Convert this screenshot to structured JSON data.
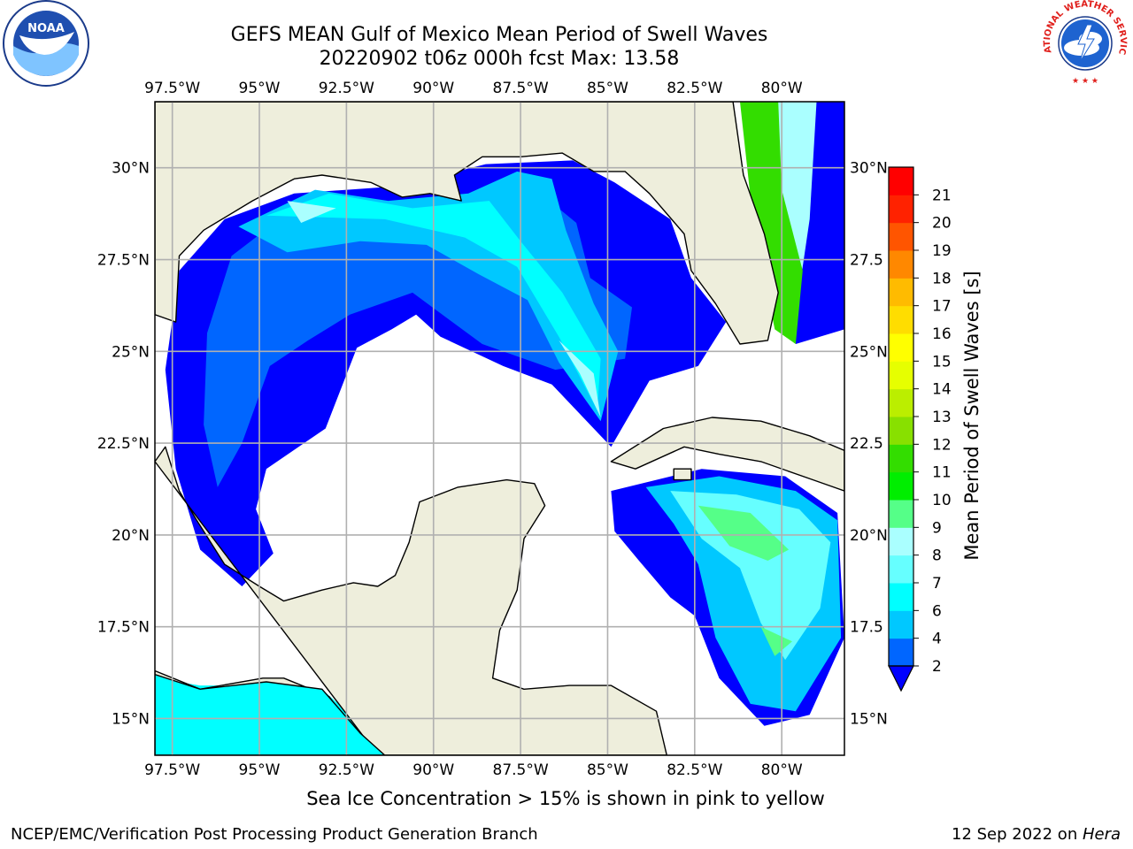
{
  "title": {
    "line1": "GEFS MEAN Gulf of Mexico Mean Period of Swell Waves",
    "line2": "20220902 t06z 000h fcst   Max: 13.58"
  },
  "logos": {
    "left": {
      "icon": "noaa-logo",
      "text": "NOAA"
    },
    "right": {
      "icon": "nws-logo",
      "text": "NATIONAL WEATHER SERVICE"
    }
  },
  "map": {
    "region": "Gulf of Mexico",
    "lon_ticks": [
      "97.5°W",
      "95°W",
      "92.5°W",
      "90°W",
      "87.5°W",
      "85°W",
      "82.5°W",
      "80°W"
    ],
    "lon_values": [
      -97.5,
      -95,
      -92.5,
      -90,
      -87.5,
      -85,
      -82.5,
      -80
    ],
    "lat_ticks_left": [
      "30°N",
      "27.5°N",
      "25°N",
      "22.5°N",
      "20°N",
      "17.5°N",
      "15°N"
    ],
    "lat_ticks_right": [
      "30°N",
      "27.5",
      "25°N",
      "22.5",
      "20°N",
      "17.5",
      "15°N"
    ],
    "lat_values": [
      30,
      27.5,
      25,
      22.5,
      20,
      17.5,
      15
    ],
    "extent": {
      "lon": [
        -98,
        -78.2
      ],
      "lat": [
        14,
        31.8
      ]
    },
    "grid": true,
    "land_color": "#eeeedc",
    "coast_color": "#000000"
  },
  "colorbar": {
    "label": "Mean Period of Swell Waves [s]",
    "ticks": [
      "2",
      "4",
      "6",
      "7",
      "8",
      "9",
      "10",
      "11",
      "12",
      "13",
      "14",
      "15",
      "16",
      "17",
      "18",
      "19",
      "20",
      "21"
    ],
    "colors": [
      "#0066ff",
      "#00c8ff",
      "#00ffff",
      "#66ffff",
      "#aaffff",
      "#55ff88",
      "#00ee00",
      "#33dd00",
      "#88e000",
      "#bbee00",
      "#e6ff00",
      "#ffff00",
      "#ffdd00",
      "#ffbb00",
      "#ff8800",
      "#ff5500",
      "#ff2200",
      "#ff0000"
    ],
    "extend_color": "#0000ff",
    "orientation": "vertical"
  },
  "caption": "Sea Ice Concentration > 15% is shown in pink to yellow",
  "footer": {
    "left": "NCEP/EMC/Verification Post Processing Product Generation Branch",
    "right_date": "12 Sep 2022 on ",
    "right_machine": "Hera"
  }
}
